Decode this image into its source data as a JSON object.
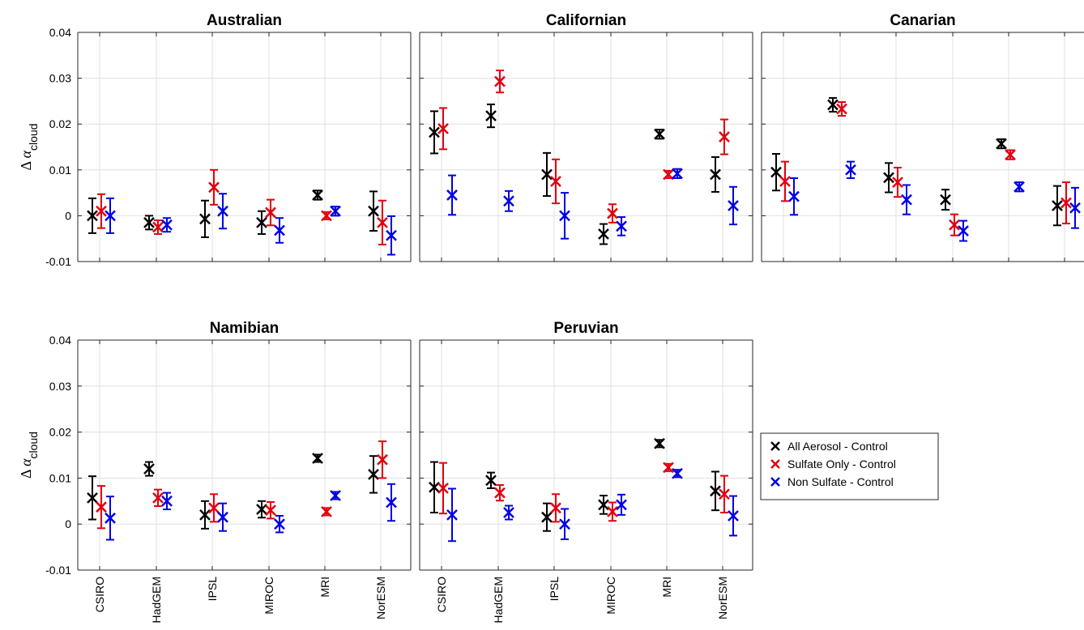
{
  "chart_data": {
    "type": "errorbar-scatter",
    "models": [
      "CSIRO",
      "HadGEM",
      "IPSL",
      "MIROC",
      "MRI",
      "NorESM"
    ],
    "ylim": [
      -0.01,
      0.04
    ],
    "yticks": [
      "-0.01",
      "0",
      "0.01",
      "0.02",
      "0.03",
      "0.04"
    ],
    "ylabel": {
      "delta": "Δ",
      "alpha": "α",
      "subscript": "cloud"
    },
    "grid": true,
    "legend": {
      "position": "right-middle",
      "entries": [
        "All Aerosol - Control",
        "Sulfate Only - Control",
        "Non Sulfate - Control"
      ]
    },
    "series_colors": [
      "#000000",
      "#e3000f",
      "#0000e6"
    ],
    "panels": [
      {
        "title": "Australian",
        "series": [
          {
            "name": "All Aerosol - Control",
            "values": [
              0.0,
              -0.0015,
              -0.0007,
              -0.0015,
              0.0045,
              0.001
            ],
            "errors": [
              0.0038,
              0.0015,
              0.004,
              0.0025,
              0.001,
              0.0043
            ]
          },
          {
            "name": "Sulfate Only - Control",
            "values": [
              0.001,
              -0.0025,
              0.0062,
              0.0007,
              0.0,
              -0.0015
            ],
            "errors": [
              0.0037,
              0.0015,
              0.0038,
              0.0028,
              0.0008,
              0.0048
            ]
          },
          {
            "name": "Non Sulfate - Control",
            "values": [
              0.0,
              -0.002,
              0.001,
              -0.0032,
              0.001,
              -0.0043
            ],
            "errors": [
              0.0038,
              0.0015,
              0.0038,
              0.0027,
              0.001,
              0.0042
            ]
          }
        ]
      },
      {
        "title": "Californian",
        "series": [
          {
            "name": "All Aerosol - Control",
            "values": [
              0.0182,
              0.0218,
              0.009,
              -0.004,
              0.0178,
              0.009
            ],
            "errors": [
              0.0046,
              0.0025,
              0.0047,
              0.0022,
              0.001,
              0.0038
            ]
          },
          {
            "name": "Sulfate Only - Control",
            "values": [
              0.019,
              0.0293,
              0.0075,
              0.0005,
              0.009,
              0.0172
            ],
            "errors": [
              0.0045,
              0.0024,
              0.0048,
              0.002,
              0.0008,
              0.0038
            ]
          },
          {
            "name": "Non Sulfate - Control",
            "values": [
              0.0045,
              0.0032,
              0.0,
              -0.0023,
              0.0092,
              0.0022
            ],
            "errors": [
              0.0043,
              0.0022,
              0.005,
              0.002,
              0.001,
              0.0041
            ]
          }
        ]
      },
      {
        "title": "Canarian",
        "series": [
          {
            "name": "All Aerosol - Control",
            "values": [
              0.0095,
              0.0242,
              0.0083,
              0.0035,
              0.0157,
              0.0022
            ],
            "errors": [
              0.004,
              0.0015,
              0.0032,
              0.0022,
              0.001,
              0.0043
            ]
          },
          {
            "name": "Sulfate Only - Control",
            "values": [
              0.0075,
              0.0233,
              0.0073,
              -0.002,
              0.0133,
              0.0028
            ],
            "errors": [
              0.0043,
              0.0015,
              0.0032,
              0.0023,
              0.001,
              0.0045
            ]
          },
          {
            "name": "Non Sulfate - Control",
            "values": [
              0.0042,
              0.01,
              0.0035,
              -0.0033,
              0.0063,
              0.0017
            ],
            "errors": [
              0.004,
              0.0018,
              0.0032,
              0.0022,
              0.001,
              0.0044
            ]
          }
        ]
      },
      {
        "title": "Namibian",
        "series": [
          {
            "name": "All Aerosol - Control",
            "values": [
              0.0057,
              0.012,
              0.002,
              0.0032,
              0.0143,
              0.0108
            ],
            "errors": [
              0.0047,
              0.0015,
              0.003,
              0.0018,
              0.0008,
              0.004
            ]
          },
          {
            "name": "Sulfate Only - Control",
            "values": [
              0.0037,
              0.0057,
              0.0035,
              0.003,
              0.0027,
              0.014
            ],
            "errors": [
              0.0046,
              0.0018,
              0.003,
              0.0018,
              0.0008,
              0.004
            ]
          },
          {
            "name": "Non Sulfate - Control",
            "values": [
              0.0013,
              0.005,
              0.0015,
              0.0,
              0.0062,
              0.0047
            ],
            "errors": [
              0.0047,
              0.0018,
              0.003,
              0.0018,
              0.0008,
              0.004
            ]
          }
        ]
      },
      {
        "title": "Peruvian",
        "series": [
          {
            "name": "All Aerosol - Control",
            "values": [
              0.008,
              0.0095,
              0.0015,
              0.0042,
              0.0175,
              0.0072
            ],
            "errors": [
              0.0055,
              0.0017,
              0.003,
              0.002,
              0.0008,
              0.0042
            ]
          },
          {
            "name": "Sulfate Only - Control",
            "values": [
              0.0078,
              0.0068,
              0.0035,
              0.0027,
              0.0123,
              0.0065
            ],
            "errors": [
              0.0055,
              0.0017,
              0.003,
              0.002,
              0.0008,
              0.004
            ]
          },
          {
            "name": "Non Sulfate - Control",
            "values": [
              0.002,
              0.0025,
              0.0,
              0.0042,
              0.011,
              0.0018
            ],
            "errors": [
              0.0057,
              0.0015,
              0.0033,
              0.0022,
              0.0008,
              0.0043
            ]
          }
        ]
      }
    ]
  }
}
